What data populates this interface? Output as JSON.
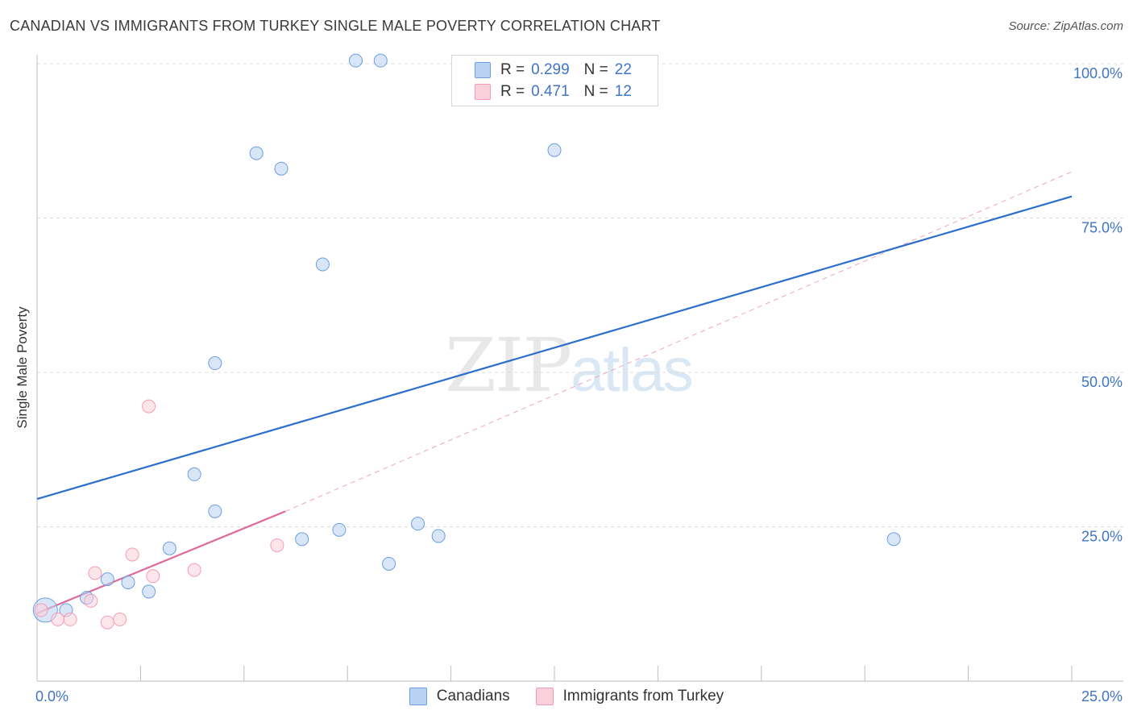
{
  "title": "CANADIAN VS IMMIGRANTS FROM TURKEY SINGLE MALE POVERTY CORRELATION CHART",
  "source": "Source: ZipAtlas.com",
  "watermark": {
    "zip": "ZIP",
    "atlas": "atlas"
  },
  "legend": {
    "r_label": "R =",
    "n_label": "N =",
    "series": [
      {
        "r": "0.299",
        "n": "22"
      },
      {
        "r": "0.471",
        "n": "12"
      }
    ]
  },
  "bottom_legend": [
    "Canadians",
    "Immigrants from Turkey"
  ],
  "chart_data": {
    "type": "scatter",
    "title": "CANADIAN VS IMMIGRANTS FROM TURKEY SINGLE MALE POVERTY CORRELATION CHART",
    "xlabel": "",
    "ylabel": "Single Male Poverty",
    "xlim": [
      0,
      25
    ],
    "ylim": [
      0,
      100
    ],
    "x_tick_labels": [
      "0.0%",
      "25.0%"
    ],
    "y_ticks": [
      25,
      50,
      75,
      100
    ],
    "y_tick_labels": [
      "25.0%",
      "50.0%",
      "75.0%",
      "100.0%"
    ],
    "grid": true,
    "colors": {
      "canadians": "#6a9fe0",
      "turkey": "#f29db5",
      "canadians_line": "#2d6fcc",
      "turkey_line": "#e0689a"
    },
    "series": [
      {
        "name": "Canadians",
        "points": [
          [
            0.2,
            11.5,
            "big"
          ],
          [
            0.7,
            11.5
          ],
          [
            1.2,
            13.5
          ],
          [
            1.7,
            16.5
          ],
          [
            2.2,
            16.0
          ],
          [
            2.7,
            14.5
          ],
          [
            3.2,
            21.5
          ],
          [
            3.8,
            33.5
          ],
          [
            4.3,
            27.5
          ],
          [
            4.3,
            51.5
          ],
          [
            5.3,
            85.5
          ],
          [
            5.9,
            83.0
          ],
          [
            6.4,
            23.0
          ],
          [
            6.9,
            67.5
          ],
          [
            7.3,
            24.5
          ],
          [
            7.7,
            100.5
          ],
          [
            8.3,
            100.5
          ],
          [
            8.5,
            19.0
          ],
          [
            9.2,
            25.5
          ],
          [
            9.7,
            23.5
          ],
          [
            12.5,
            86.0
          ],
          [
            20.7,
            23.0
          ]
        ],
        "trend": {
          "x0": 0,
          "y0": 29.5,
          "x1": 25,
          "y1": 78.5
        }
      },
      {
        "name": "Immigrants from Turkey",
        "points": [
          [
            0.1,
            11.5
          ],
          [
            0.5,
            10.0
          ],
          [
            0.8,
            10.0
          ],
          [
            1.3,
            13.0
          ],
          [
            1.4,
            17.5
          ],
          [
            1.7,
            9.5
          ],
          [
            2.0,
            10.0
          ],
          [
            2.3,
            20.5
          ],
          [
            2.7,
            44.5
          ],
          [
            2.8,
            17.0
          ],
          [
            3.8,
            18.0
          ],
          [
            5.8,
            22.0
          ]
        ],
        "trend": {
          "x0": 0,
          "y0": 11.0,
          "x1": 6,
          "y1": 27.5
        },
        "trend_extended": {
          "x0": 6,
          "y0": 27.5,
          "x1": 25,
          "y1": 82.5
        }
      }
    ]
  }
}
